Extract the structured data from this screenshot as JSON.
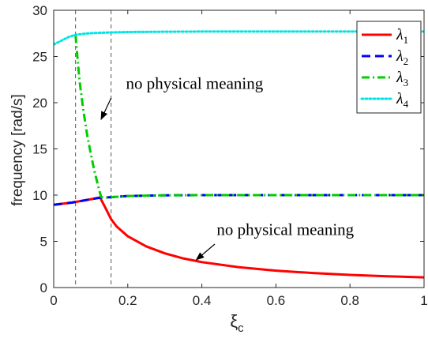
{
  "chart_data": {
    "type": "line",
    "xlabel_symbol": "ξ",
    "xlabel_subscript": "c",
    "ylabel": "frequency [rad/s]",
    "xlim": [
      0,
      1
    ],
    "ylim": [
      0,
      30
    ],
    "xticks": [
      0,
      0.2,
      0.4,
      0.6,
      0.8,
      1
    ],
    "xtick_labels": [
      "0",
      "0.2",
      "0.4",
      "0.6",
      "0.8",
      "1"
    ],
    "yticks": [
      0,
      5,
      10,
      15,
      20,
      25,
      30
    ],
    "ytick_labels": [
      "0",
      "5",
      "10",
      "15",
      "20",
      "25",
      "30"
    ],
    "grid": false,
    "legend_position": "top-right",
    "vlines": [
      0.059,
      0.155
    ],
    "annotations": [
      {
        "text": "no physical meaning",
        "text_x": 0.195,
        "text_y": 21.5,
        "arrow_from": [
          0.155,
          20.5
        ],
        "arrow_to": [
          0.128,
          18.2
        ]
      },
      {
        "text": "no physical meaning",
        "text_x": 0.44,
        "text_y": 5.7,
        "arrow_from": [
          0.435,
          4.7
        ],
        "arrow_to": [
          0.385,
          3.0
        ]
      }
    ],
    "series": [
      {
        "name": "λ",
        "subscript": "1",
        "color": "#ff0000",
        "style": "solid",
        "x": [
          0,
          0.05,
          0.1,
          0.125,
          0.14,
          0.155,
          0.17,
          0.2,
          0.25,
          0.3,
          0.35,
          0.4,
          0.5,
          0.6,
          0.7,
          0.8,
          0.9,
          1.0
        ],
        "y": [
          8.95,
          9.2,
          9.55,
          9.75,
          8.6,
          7.4,
          6.6,
          5.55,
          4.45,
          3.7,
          3.15,
          2.75,
          2.2,
          1.83,
          1.57,
          1.37,
          1.22,
          1.1
        ]
      },
      {
        "name": "λ",
        "subscript": "2",
        "color": "#0000ff",
        "style": "dashed",
        "x": [
          0,
          0.05,
          0.1,
          0.125,
          0.155,
          0.2,
          0.3,
          0.4,
          0.5,
          0.6,
          0.8,
          1.0
        ],
        "y": [
          8.95,
          9.2,
          9.55,
          9.72,
          9.78,
          9.9,
          9.98,
          10.0,
          10.0,
          10.0,
          10.0,
          10.0
        ]
      },
      {
        "name": "λ",
        "subscript": "3",
        "color": "#00cc00",
        "style": "dashdot",
        "x": [
          0.059,
          0.065,
          0.07,
          0.08,
          0.09,
          0.1,
          0.11,
          0.12,
          0.128,
          0.14,
          0.155,
          0.2,
          0.3,
          0.4,
          0.5,
          0.6,
          0.8,
          1.0
        ],
        "y": [
          27.3,
          24.5,
          22.3,
          19.2,
          16.6,
          14.5,
          12.6,
          11.0,
          9.8,
          9.72,
          9.78,
          9.9,
          9.98,
          10.0,
          10.0,
          10.0,
          10.0,
          10.0
        ]
      },
      {
        "name": "λ",
        "subscript": "4",
        "color": "#00e5e5",
        "style": "dotted",
        "x": [
          0,
          0.02,
          0.04,
          0.059,
          0.08,
          0.1,
          0.15,
          0.2,
          0.3,
          0.4,
          0.6,
          0.8,
          1.0
        ],
        "y": [
          26.3,
          26.7,
          27.1,
          27.35,
          27.45,
          27.52,
          27.6,
          27.65,
          27.68,
          27.7,
          27.7,
          27.7,
          27.7
        ]
      }
    ]
  }
}
